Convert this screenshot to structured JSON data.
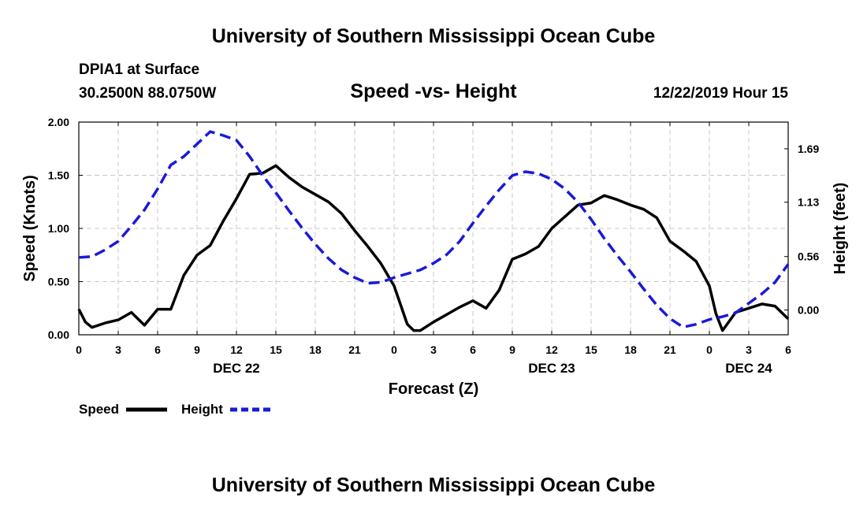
{
  "header": {
    "title": "University of Southern Mississippi Ocean Cube",
    "station": "DPIA1 at Surface",
    "coords": "30.2500N 88.0750W",
    "plot_title": "Speed -vs- Height",
    "datetime": "12/22/2019 Hour 15"
  },
  "footer": {
    "title": "University of Southern Mississippi Ocean Cube"
  },
  "legend": {
    "speed_label": "Speed",
    "height_label": "Height"
  },
  "colors": {
    "speed": "#000000",
    "height": "#1a1ad8",
    "grid": "#c8c8c8"
  },
  "chart_data": {
    "type": "line",
    "title": "Speed -vs- Height",
    "xlabel": "Forecast (Z)",
    "ylabel": "Speed (Knots)",
    "y2label": "Height (feet)",
    "xlim": [
      0,
      54
    ],
    "ylim": [
      0,
      2.0
    ],
    "y2lim": [
      -0.26,
      1.97
    ],
    "x_ticks": [
      0,
      3,
      6,
      9,
      12,
      15,
      18,
      21,
      24,
      27,
      30,
      33,
      36,
      39,
      42,
      45,
      48,
      51,
      54
    ],
    "x_tick_labels": [
      "0",
      "3",
      "6",
      "9",
      "12",
      "15",
      "18",
      "21",
      "0",
      "3",
      "6",
      "9",
      "12",
      "15",
      "18",
      "21",
      "0",
      "3",
      "6"
    ],
    "day_labels": [
      {
        "x": 12,
        "label": "DEC 22"
      },
      {
        "x": 36,
        "label": "DEC 23"
      },
      {
        "x": 51,
        "label": "DEC 24"
      }
    ],
    "y_ticks": [
      0,
      0.5,
      1.0,
      1.5,
      2.0
    ],
    "y_tick_labels": [
      "0.00",
      "0.50",
      "1.00",
      "1.50",
      "2.00"
    ],
    "y2_ticks": [
      0.0,
      0.56,
      1.13,
      1.69
    ],
    "y2_tick_labels": [
      "0.00",
      "0.56",
      "1.13",
      "1.69"
    ],
    "series": [
      {
        "name": "Speed",
        "axis": "left",
        "style": "solid",
        "x": [
          0,
          0.5,
          1,
          2,
          3,
          4,
          5,
          6,
          7,
          8,
          9,
          10,
          11,
          12,
          13,
          14,
          15,
          16,
          17,
          18,
          19,
          20,
          21,
          22,
          23,
          24,
          25,
          25.5,
          26,
          27,
          28,
          29,
          30,
          31,
          32,
          33,
          34,
          35,
          36,
          37,
          38,
          39,
          40,
          41,
          42,
          43,
          44,
          45,
          46,
          47,
          48,
          48.5,
          49,
          50,
          51,
          52,
          53,
          54
        ],
        "values": [
          0.24,
          0.12,
          0.07,
          0.11,
          0.14,
          0.21,
          0.09,
          0.24,
          0.24,
          0.56,
          0.75,
          0.84,
          1.07,
          1.28,
          1.51,
          1.52,
          1.59,
          1.48,
          1.39,
          1.32,
          1.25,
          1.14,
          0.98,
          0.83,
          0.67,
          0.46,
          0.1,
          0.04,
          0.04,
          0.12,
          0.19,
          0.26,
          0.32,
          0.25,
          0.42,
          0.71,
          0.76,
          0.83,
          1.0,
          1.11,
          1.22,
          1.24,
          1.31,
          1.27,
          1.22,
          1.18,
          1.1,
          0.88,
          0.79,
          0.69,
          0.46,
          0.2,
          0.04,
          0.21,
          0.25,
          0.29,
          0.27,
          0.15
        ]
      },
      {
        "name": "Height",
        "axis": "right",
        "style": "dashed",
        "x": [
          0,
          1,
          2,
          3,
          4,
          5,
          6,
          7,
          8,
          9,
          10,
          11,
          12,
          13,
          14,
          15,
          16,
          17,
          18,
          19,
          20,
          21,
          22,
          23,
          24,
          25,
          26,
          27,
          28,
          29,
          30,
          31,
          32,
          33,
          34,
          35,
          36,
          37,
          38,
          39,
          40,
          41,
          42,
          43,
          44,
          45,
          46,
          47,
          48,
          49,
          50,
          51,
          52,
          53,
          54
        ],
        "values": [
          0.55,
          0.56,
          0.63,
          0.72,
          0.88,
          1.05,
          1.27,
          1.52,
          1.61,
          1.74,
          1.87,
          1.83,
          1.78,
          1.61,
          1.41,
          1.23,
          1.04,
          0.86,
          0.69,
          0.54,
          0.42,
          0.34,
          0.28,
          0.29,
          0.34,
          0.38,
          0.42,
          0.49,
          0.58,
          0.72,
          0.91,
          1.09,
          1.26,
          1.41,
          1.45,
          1.43,
          1.37,
          1.27,
          1.13,
          0.95,
          0.75,
          0.57,
          0.4,
          0.22,
          0.05,
          -0.09,
          -0.18,
          -0.15,
          -0.1,
          -0.07,
          -0.03,
          0.07,
          0.17,
          0.29,
          0.48
        ]
      }
    ],
    "grid": true,
    "legend_position": "bottom-left"
  }
}
